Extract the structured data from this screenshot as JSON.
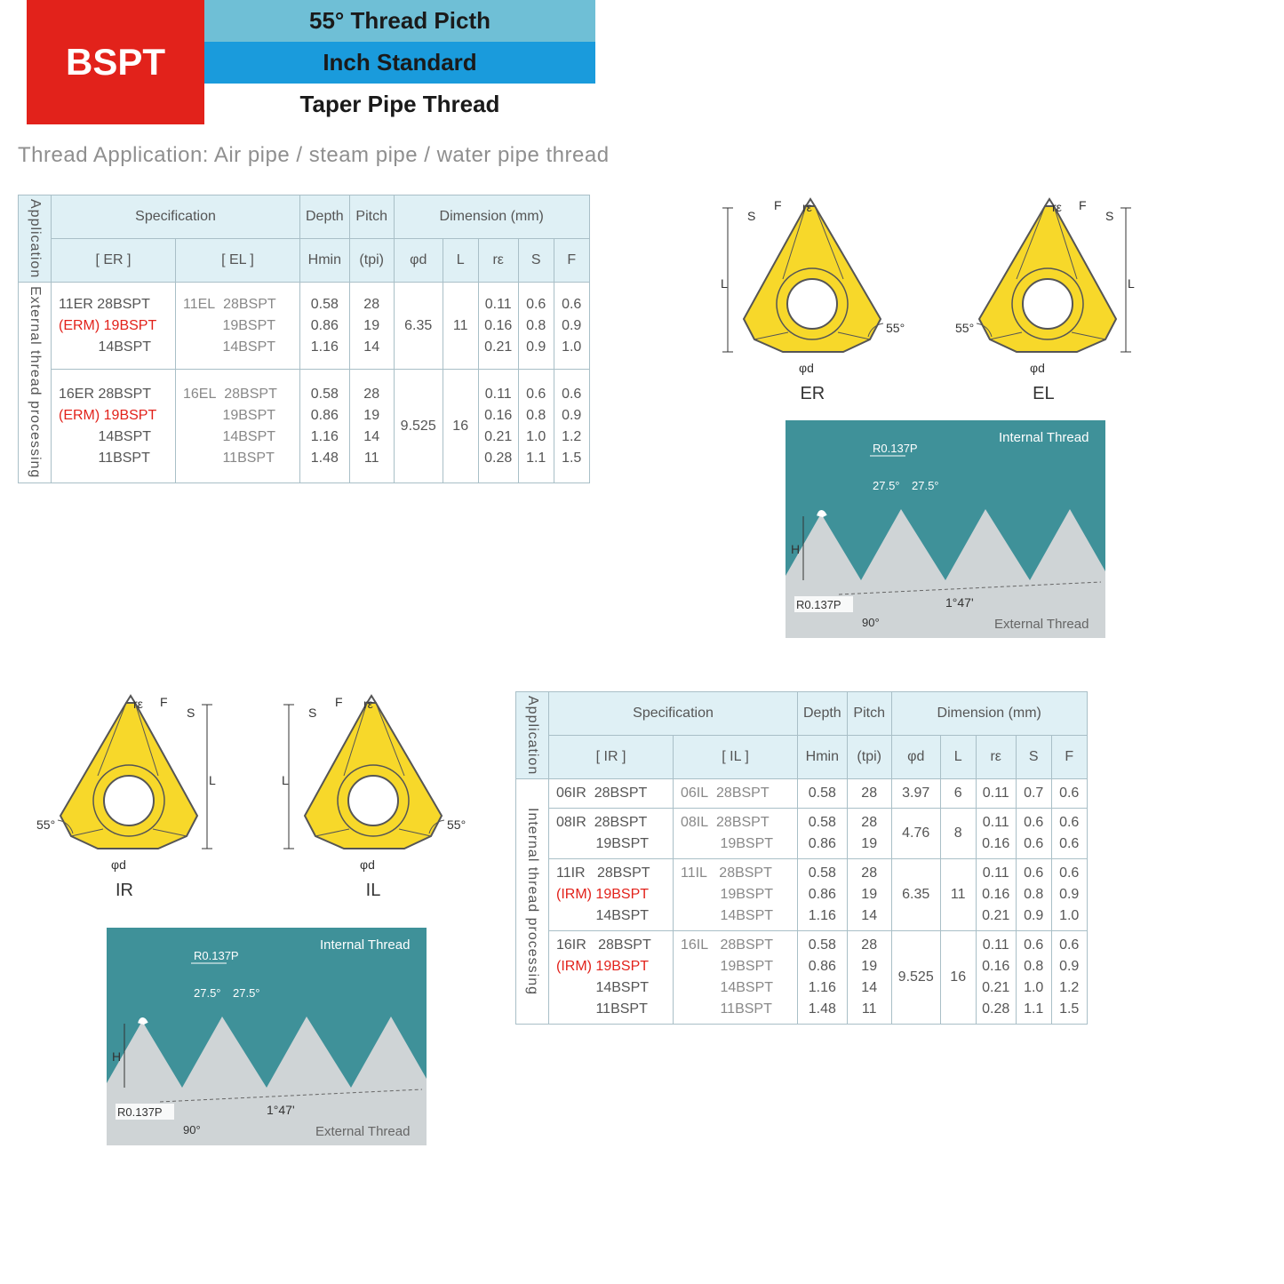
{
  "header": {
    "brand": "BSPT",
    "line1": "55° Thread Picth",
    "line2": "Inch Standard",
    "line3": "Taper Pipe Thread"
  },
  "app_note_label": "Thread Application: ",
  "app_note_text": "Air pipe / steam pipe / water pipe thread",
  "table_common": {
    "application": "Application",
    "specification": "Specification",
    "depth": "Depth",
    "pitch": "Pitch",
    "dimension": "Dimension (mm)",
    "hmin": "Hmin",
    "tpi": "(tpi)",
    "phid": "φd",
    "L": "L",
    "re": "rε",
    "S": "S",
    "F": "F"
  },
  "ext_table": {
    "side_label": "External thread processing",
    "col1": "[ ER ]",
    "col2": "[ EL ]",
    "groups": [
      {
        "er_lines": [
          "11ER 28BSPT",
          "(ERM) 19BSPT",
          "          14BSPT"
        ],
        "el_lines": [
          "11EL  28BSPT",
          "          19BSPT",
          "          14BSPT"
        ],
        "hmin": [
          "0.58",
          "0.86",
          "1.16"
        ],
        "tpi": [
          "28",
          "19",
          "14"
        ],
        "phid": "6.35",
        "L": "11",
        "re": [
          "0.11",
          "0.16",
          "0.21"
        ],
        "S": [
          "0.6",
          "0.8",
          "0.9"
        ],
        "F": [
          "0.6",
          "0.9",
          "1.0"
        ]
      },
      {
        "er_lines": [
          "16ER 28BSPT",
          "(ERM) 19BSPT",
          "          14BSPT",
          "          11BSPT"
        ],
        "el_lines": [
          "16EL  28BSPT",
          "          19BSPT",
          "          14BSPT",
          "          11BSPT"
        ],
        "hmin": [
          "0.58",
          "0.86",
          "1.16",
          "1.48"
        ],
        "tpi": [
          "28",
          "19",
          "14",
          "11"
        ],
        "phid": "9.525",
        "L": "16",
        "re": [
          "0.11",
          "0.16",
          "0.21",
          "0.28"
        ],
        "S": [
          "0.6",
          "0.8",
          "1.0",
          "1.1"
        ],
        "F": [
          "0.6",
          "0.9",
          "1.2",
          "1.5"
        ]
      }
    ]
  },
  "int_table": {
    "side_label": "Internal thread processing",
    "col1": "[ IR ]",
    "col2": "[ IL ]",
    "groups": [
      {
        "ir_lines": [
          "06IR  28BSPT"
        ],
        "il_lines": [
          "06IL  28BSPT"
        ],
        "hmin": [
          "0.58"
        ],
        "tpi": [
          "28"
        ],
        "phid": "3.97",
        "L": "6",
        "re": [
          "0.11"
        ],
        "S": [
          "0.7"
        ],
        "F": [
          "0.6"
        ]
      },
      {
        "ir_lines": [
          "08IR  28BSPT",
          "          19BSPT"
        ],
        "il_lines": [
          "08IL  28BSPT",
          "          19BSPT"
        ],
        "hmin": [
          "0.58",
          "0.86"
        ],
        "tpi": [
          "28",
          "19"
        ],
        "phid": "4.76",
        "L": "8",
        "re": [
          "0.11",
          "0.16"
        ],
        "S": [
          "0.6",
          "0.6"
        ],
        "F": [
          "0.6",
          "0.6"
        ]
      },
      {
        "ir_lines": [
          "11IR   28BSPT",
          "(IRM) 19BSPT",
          "          14BSPT"
        ],
        "il_lines": [
          "11IL   28BSPT",
          "          19BSPT",
          "          14BSPT"
        ],
        "hmin": [
          "0.58",
          "0.86",
          "1.16"
        ],
        "tpi": [
          "28",
          "19",
          "14"
        ],
        "phid": "6.35",
        "L": "11",
        "re": [
          "0.11",
          "0.16",
          "0.21"
        ],
        "S": [
          "0.6",
          "0.8",
          "0.9"
        ],
        "F": [
          "0.6",
          "0.9",
          "1.0"
        ]
      },
      {
        "ir_lines": [
          "16IR   28BSPT",
          "(IRM) 19BSPT",
          "          14BSPT",
          "          11BSPT"
        ],
        "il_lines": [
          "16IL   28BSPT",
          "          19BSPT",
          "          14BSPT",
          "          11BSPT"
        ],
        "hmin": [
          "0.58",
          "0.86",
          "1.16",
          "1.48"
        ],
        "tpi": [
          "28",
          "19",
          "14",
          "11"
        ],
        "phid": "9.525",
        "L": "16",
        "re": [
          "0.11",
          "0.16",
          "0.21",
          "0.28"
        ],
        "S": [
          "0.6",
          "0.8",
          "1.0",
          "1.1"
        ],
        "F": [
          "0.6",
          "0.9",
          "1.2",
          "1.5"
        ]
      }
    ]
  },
  "insert_labels": {
    "ER": "ER",
    "EL": "EL",
    "IR": "IR",
    "IL": "IL"
  },
  "insert_dims": {
    "F": "F",
    "S": "S",
    "L": "L",
    "re": "rε",
    "phid": "φd",
    "ang": "55°"
  },
  "profile": {
    "internal": "Internal Thread",
    "external": "External Thread",
    "r_top": "R0.137P",
    "r_bot": "R0.137P",
    "ang1": "27.5°",
    "ang2": "27.5°",
    "H": "H",
    "taper": "1°47'",
    "ang90": "90°"
  },
  "colors": {
    "brand_bg": "#e2221b",
    "title1": "#6fbfd6",
    "title2": "#1a9bdc",
    "table_head": "#dff0f5",
    "border": "#a9bfc7",
    "insert_fill": "#f7d82a",
    "insert_stroke": "#555",
    "profile_bg": "#3f9199",
    "profile_wave": "#cfd4d6"
  }
}
